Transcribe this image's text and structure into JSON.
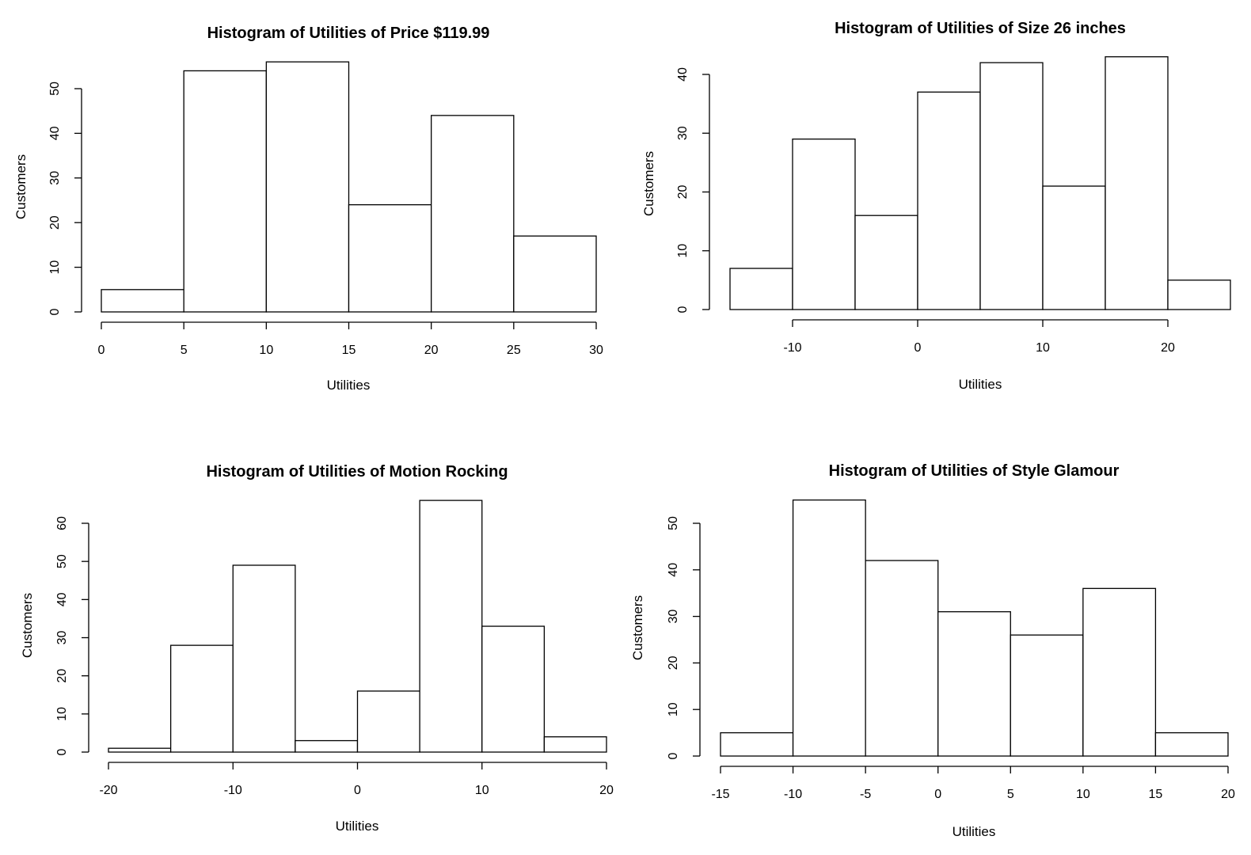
{
  "chart_data": [
    {
      "type": "bar",
      "title": "Histogram of Utilities of Price $119.99",
      "xlabel": "Utilities",
      "ylabel": "Customers",
      "bin_edges": [
        0,
        5,
        10,
        15,
        20,
        25,
        30
      ],
      "values": [
        5,
        54,
        56,
        24,
        44,
        17
      ],
      "xticks": [
        0,
        5,
        10,
        15,
        20,
        25,
        30
      ],
      "xtick_labels": [
        "0",
        "5",
        "10",
        "15",
        "20",
        "25",
        "30"
      ],
      "yticks": [
        0,
        10,
        20,
        30,
        40,
        50
      ],
      "ytick_labels": [
        "0",
        "10",
        "20",
        "30",
        "40",
        "50"
      ],
      "grid": false
    },
    {
      "type": "bar",
      "title": "Histogram of Utilities of Size 26 inches",
      "xlabel": "Utilities",
      "ylabel": "Customers",
      "bin_edges": [
        -15,
        -10,
        -5,
        0,
        5,
        10,
        15,
        20,
        25
      ],
      "values": [
        7,
        29,
        16,
        37,
        42,
        21,
        43,
        5
      ],
      "xticks": [
        -10,
        0,
        10,
        20
      ],
      "xtick_labels": [
        "-10",
        "0",
        "10",
        "20"
      ],
      "yticks": [
        0,
        10,
        20,
        30,
        40
      ],
      "ytick_labels": [
        "0",
        "10",
        "20",
        "30",
        "40"
      ],
      "grid": false
    },
    {
      "type": "bar",
      "title": "Histogram of Utilities of Motion Rocking",
      "xlabel": "Utilities",
      "ylabel": "Customers",
      "bin_edges": [
        -20,
        -15,
        -10,
        -5,
        0,
        5,
        10,
        15,
        20
      ],
      "values": [
        1,
        28,
        49,
        3,
        16,
        66,
        33,
        4
      ],
      "xticks": [
        -20,
        -10,
        0,
        10,
        20
      ],
      "xtick_labels": [
        "-20",
        "-10",
        "0",
        "10",
        "20"
      ],
      "yticks": [
        0,
        10,
        20,
        30,
        40,
        50,
        60
      ],
      "ytick_labels": [
        "0",
        "10",
        "20",
        "30",
        "40",
        "50",
        "60"
      ],
      "grid": false
    },
    {
      "type": "bar",
      "title": "Histogram of Utilities of Style Glamour",
      "xlabel": "Utilities",
      "ylabel": "Customers",
      "bin_edges": [
        -15,
        -10,
        -5,
        0,
        5,
        10,
        15,
        20
      ],
      "values": [
        5,
        55,
        42,
        31,
        26,
        36,
        5
      ],
      "xticks": [
        -15,
        -10,
        -5,
        0,
        5,
        10,
        15,
        20
      ],
      "xtick_labels": [
        "-15",
        "-10",
        "-5",
        "0",
        "5",
        "10",
        "15",
        "20"
      ],
      "yticks": [
        0,
        10,
        20,
        30,
        40,
        50
      ],
      "ytick_labels": [
        "0",
        "10",
        "20",
        "30",
        "40",
        "50"
      ],
      "grid": false
    }
  ]
}
